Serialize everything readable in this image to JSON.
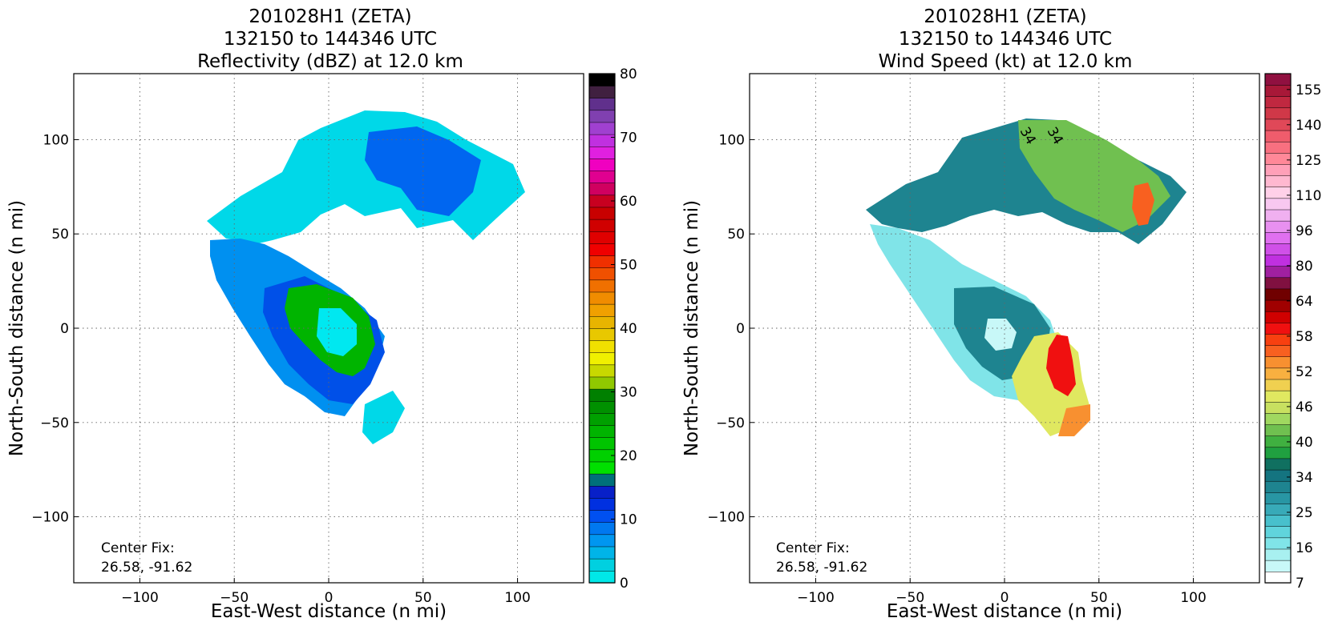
{
  "chart_data": [
    {
      "type": "heatmap",
      "title_lines": [
        "201028H1 (ZETA)",
        "132150 to 144346 UTC",
        "Reflectivity (dBZ) at 12.0 km"
      ],
      "xlabel": "East-West distance (n mi)",
      "ylabel": "North-South distance (n mi)",
      "xlim": [
        -135,
        135
      ],
      "ylim": [
        -135,
        135
      ],
      "x_ticks": [
        -100,
        -50,
        0,
        50,
        100
      ],
      "y_ticks": [
        -100,
        -50,
        0,
        50,
        100
      ],
      "grid": true,
      "annotation": [
        "Center Fix:",
        "26.58, -91.62"
      ],
      "colorbar": {
        "min": 0,
        "max": 80,
        "tick_labels": [
          "0",
          "10",
          "20",
          "30",
          "40",
          "50",
          "60",
          "70",
          "80"
        ],
        "colors": [
          "#00e8e8",
          "#00d0e0",
          "#00b4e8",
          "#0096f0",
          "#0078f0",
          "#0050f0",
          "#0030e0",
          "#0820c8",
          "#00707a",
          "#00e000",
          "#00d000",
          "#00c400",
          "#00b400",
          "#00a000",
          "#009000",
          "#008000",
          "#90c800",
          "#c8d800",
          "#f0f000",
          "#f0e000",
          "#e8c800",
          "#e8b400",
          "#f0a000",
          "#f08c00",
          "#f07000",
          "#f05000",
          "#f03000",
          "#f00000",
          "#e00000",
          "#d00000",
          "#c80000",
          "#c80020",
          "#d00060",
          "#e00090",
          "#f000c0",
          "#e020e0",
          "#c030e0",
          "#a040d0",
          "#8040b0",
          "#60308c",
          "#402040",
          "#000000"
        ]
      }
    },
    {
      "type": "heatmap",
      "title_lines": [
        "201028H1 (ZETA)",
        "132150 to 144346 UTC",
        "Wind Speed (kt) at 12.0 km"
      ],
      "xlabel": "East-West distance (n mi)",
      "ylabel": "North-South distance (n mi)",
      "xlim": [
        -135,
        135
      ],
      "ylim": [
        -135,
        135
      ],
      "x_ticks": [
        -100,
        -50,
        0,
        50,
        100
      ],
      "y_ticks": [
        -100,
        -50,
        0,
        50,
        100
      ],
      "grid": true,
      "annotation": [
        "Center Fix:",
        "26.58, -91.62"
      ],
      "contour_labels": [
        "34",
        "34"
      ],
      "colorbar": {
        "tick_labels": [
          "7",
          "16",
          "25",
          "34",
          "40",
          "46",
          "52",
          "58",
          "64",
          "80",
          "96",
          "110",
          "125",
          "140",
          "155"
        ],
        "colors": [
          "#ffffff",
          "#c8f8f8",
          "#a8f0f0",
          "#80e4e8",
          "#60d4dc",
          "#48c0cc",
          "#38aab8",
          "#2896a4",
          "#1e8490",
          "#147480",
          "#107060",
          "#20a040",
          "#40b040",
          "#70c050",
          "#a0d860",
          "#c8e060",
          "#e0e860",
          "#f0d050",
          "#f8b040",
          "#f89030",
          "#f86020",
          "#f84010",
          "#f01010",
          "#d00000",
          "#a00000",
          "#700000",
          "#801040",
          "#a020a0",
          "#c030e0",
          "#d050e8",
          "#e070f0",
          "#e890f0",
          "#f0b0f0",
          "#f8c8f0",
          "#ffd0e8",
          "#ffb8d0",
          "#ffa0b8",
          "#ff8898",
          "#f87080",
          "#f05c6c",
          "#e04858",
          "#d03848",
          "#c02840",
          "#a81838",
          "#901040"
        ]
      }
    }
  ]
}
